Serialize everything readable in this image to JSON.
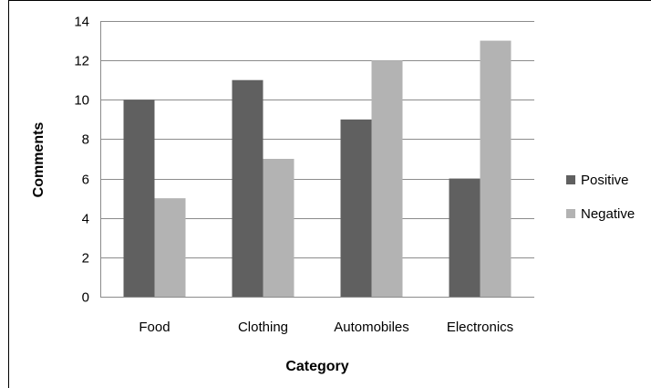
{
  "chart_data": {
    "type": "bar",
    "title": "",
    "xlabel": "Category",
    "ylabel": "Comments",
    "categories": [
      "Food",
      "Clothing",
      "Automobiles",
      "Electronics"
    ],
    "series": [
      {
        "name": "Positive",
        "values": [
          10,
          11,
          9,
          6
        ],
        "color": "#606060"
      },
      {
        "name": "Negative",
        "values": [
          5,
          7,
          12,
          13
        ],
        "color": "#b3b3b3"
      }
    ],
    "ylim": [
      0,
      14
    ],
    "yticks": [
      "0",
      "2",
      "4",
      "6",
      "8",
      "10",
      "12",
      "14"
    ],
    "grid": true,
    "legend_position": "right"
  }
}
